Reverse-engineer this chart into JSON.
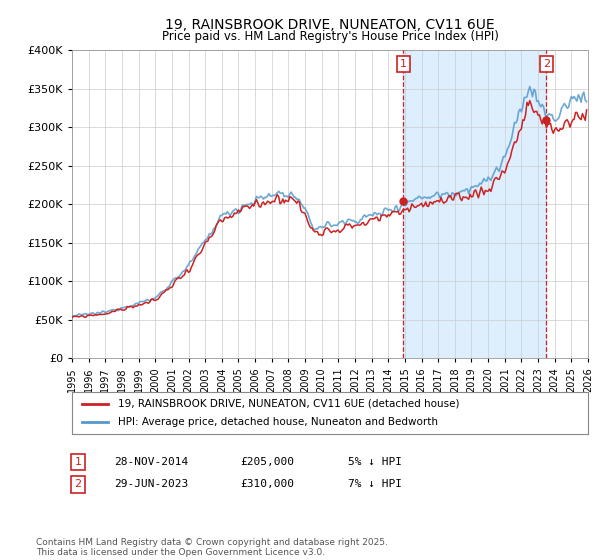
{
  "title": "19, RAINSBROOK DRIVE, NUNEATON, CV11 6UE",
  "subtitle": "Price paid vs. HM Land Registry's House Price Index (HPI)",
  "legend_line1": "19, RAINSBROOK DRIVE, NUNEATON, CV11 6UE (detached house)",
  "legend_line2": "HPI: Average price, detached house, Nuneaton and Bedworth",
  "annotation1_label": "1",
  "annotation1_date": "28-NOV-2014",
  "annotation1_price": "£205,000",
  "annotation1_note": "5% ↓ HPI",
  "annotation2_label": "2",
  "annotation2_date": "29-JUN-2023",
  "annotation2_price": "£310,000",
  "annotation2_note": "7% ↓ HPI",
  "sale1_x": 2014.91,
  "sale1_y": 205000,
  "sale2_x": 2023.49,
  "sale2_y": 310000,
  "vline1_x": 2014.91,
  "vline2_x": 2023.49,
  "xmin": 1995,
  "xmax": 2026,
  "ymin": 0,
  "ymax": 400000,
  "yticks": [
    0,
    50000,
    100000,
    150000,
    200000,
    250000,
    300000,
    350000,
    400000
  ],
  "background_color": "#ffffff",
  "shade_color": "#ddeeff",
  "grid_color": "#cccccc",
  "hpi_line_color": "#5599cc",
  "price_line_color": "#cc2222",
  "vline_color": "#cc2222",
  "title_fontsize": 10,
  "footer": "Contains HM Land Registry data © Crown copyright and database right 2025.\nThis data is licensed under the Open Government Licence v3.0."
}
